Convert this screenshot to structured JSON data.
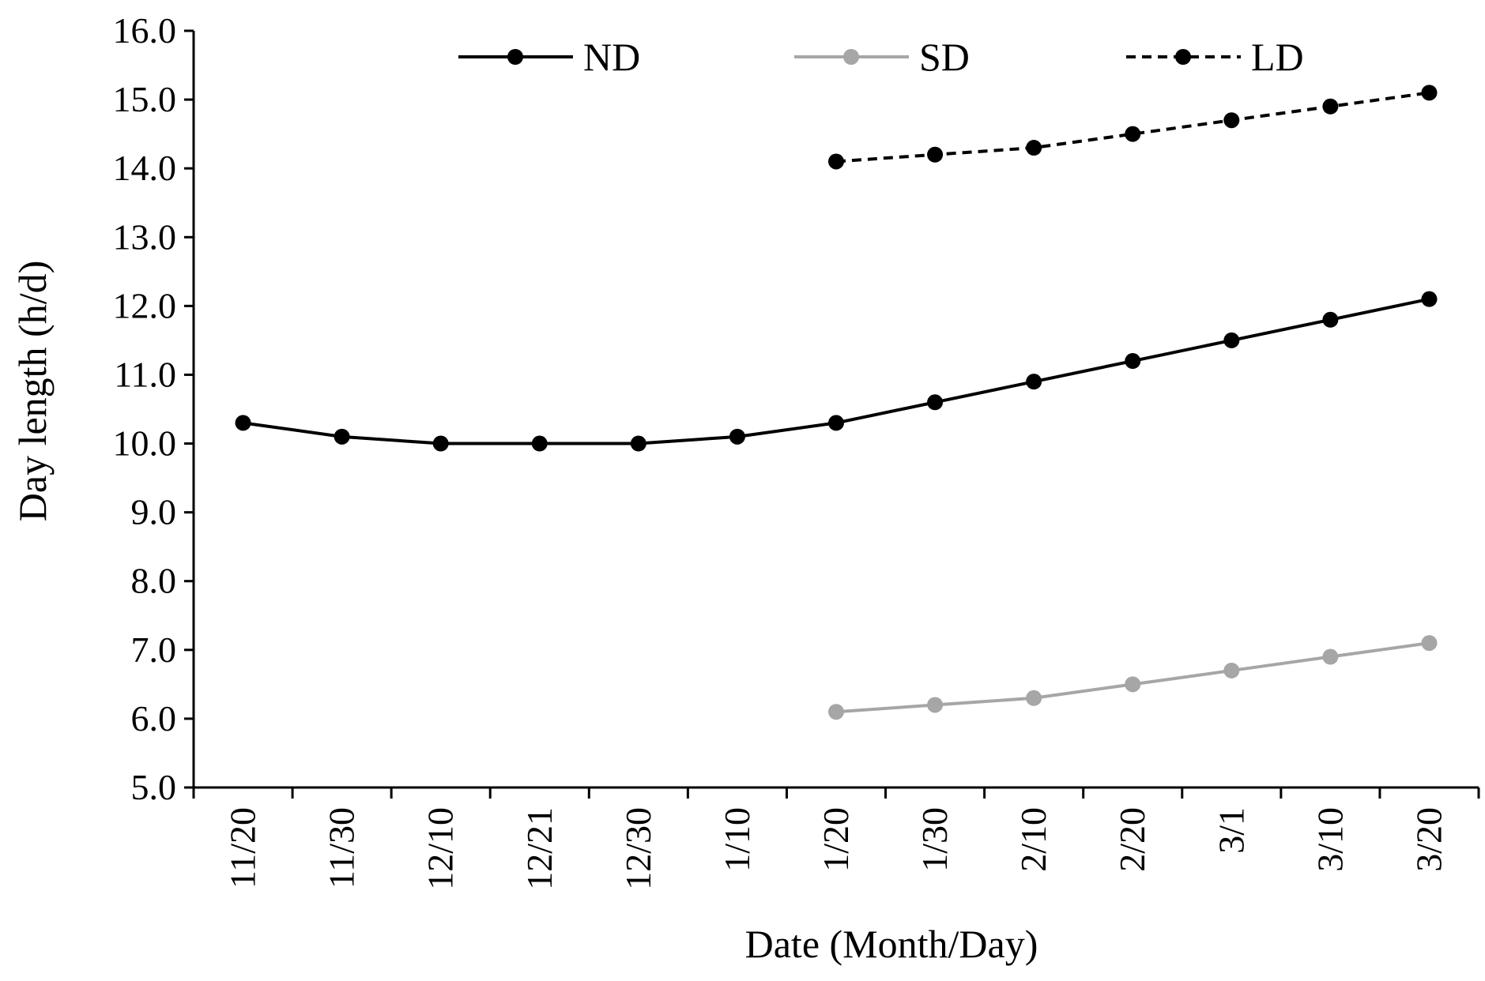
{
  "chart_data": {
    "type": "line",
    "title": "",
    "xlabel": "Date (Month/Day)",
    "ylabel": "Day length (h/d)",
    "ylim": [
      5.0,
      16.0
    ],
    "yticks": [
      "5.0",
      "6.0",
      "7.0",
      "8.0",
      "9.0",
      "10.0",
      "11.0",
      "12.0",
      "13.0",
      "14.0",
      "15.0",
      "16.0"
    ],
    "categories": [
      "11/20",
      "11/30",
      "12/10",
      "12/21",
      "12/30",
      "1/10",
      "1/20",
      "1/30",
      "2/10",
      "2/20",
      "3/1",
      "3/10",
      "3/20"
    ],
    "legend_position": "top",
    "series": [
      {
        "name": "ND",
        "color": "#000000",
        "dashed": false,
        "values": [
          10.3,
          10.1,
          10.0,
          10.0,
          10.0,
          10.1,
          10.3,
          10.6,
          10.9,
          11.2,
          11.5,
          11.8,
          12.1
        ]
      },
      {
        "name": "SD",
        "color": "#a6a6a6",
        "dashed": false,
        "values": [
          null,
          null,
          null,
          null,
          null,
          null,
          6.1,
          6.2,
          6.3,
          6.5,
          6.7,
          6.9,
          7.1
        ]
      },
      {
        "name": "LD",
        "color": "#000000",
        "dashed": true,
        "values": [
          null,
          null,
          null,
          null,
          null,
          null,
          14.1,
          14.2,
          14.3,
          14.5,
          14.7,
          14.9,
          15.1
        ]
      }
    ]
  }
}
